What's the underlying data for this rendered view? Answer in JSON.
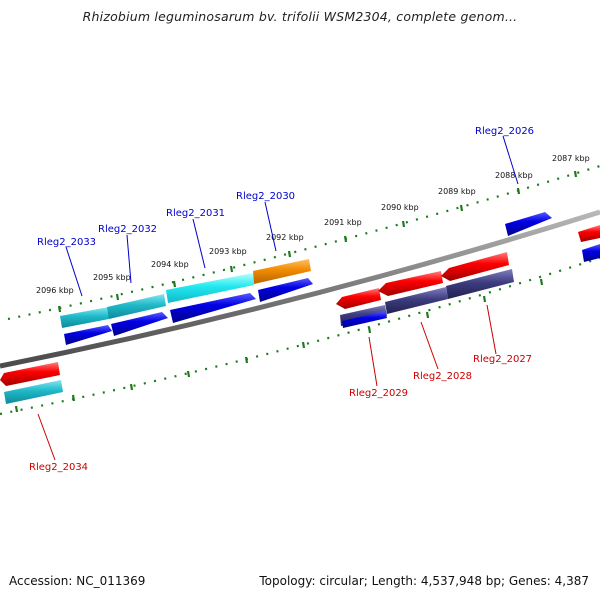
{
  "title": "Rhizobium leguminosarum bv. trifolii WSM2304, complete genom...",
  "footer": {
    "accession": "Accession: NC_011369",
    "topology": "Topology: circular; Length: 4,537,948 bp; Genes: 4,387"
  },
  "colors": {
    "backbone": "#7f7f7f",
    "tick": "#1f7a1f",
    "forward_label": "#0000cc",
    "reverse_label": "#cc0000",
    "cyan_gene": "#1fb8c8",
    "blue_gene": "#0000e0",
    "orange_gene": "#f08a00",
    "red_gene": "#ee0000",
    "purple_gene": "#3c3c80"
  },
  "ticks": [
    {
      "label": "2096 kbp"
    },
    {
      "label": "2095 kbp"
    },
    {
      "label": "2094 kbp"
    },
    {
      "label": "2093 kbp"
    },
    {
      "label": "2092 kbp"
    },
    {
      "label": "2091 kbp"
    },
    {
      "label": "2090 kbp"
    },
    {
      "label": "2089 kbp"
    },
    {
      "label": "2088 kbp"
    },
    {
      "label": "2087 kbp"
    }
  ],
  "genes_forward": [
    {
      "name": "Rleg2_2033"
    },
    {
      "name": "Rleg2_2032"
    },
    {
      "name": "Rleg2_2031"
    },
    {
      "name": "Rleg2_2030"
    },
    {
      "name": "Rleg2_2026"
    }
  ],
  "genes_reverse": [
    {
      "name": "Rleg2_2034"
    },
    {
      "name": "Rleg2_2029"
    },
    {
      "name": "Rleg2_2028"
    },
    {
      "name": "Rleg2_2027"
    }
  ]
}
